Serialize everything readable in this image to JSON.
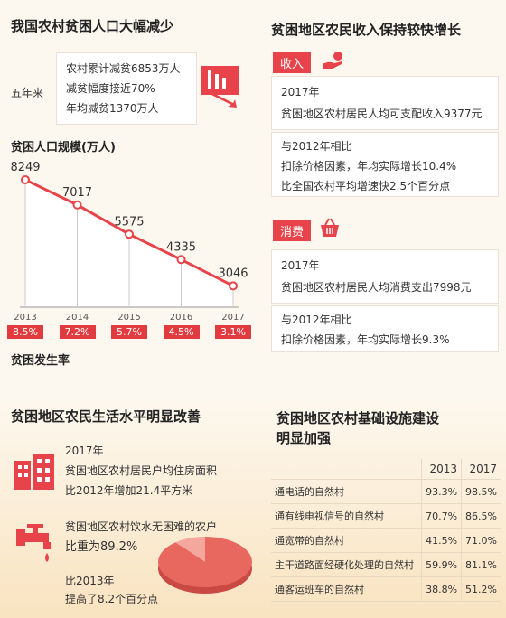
{
  "panel1": {
    "title": "我国农村贫困人口大幅减少",
    "five_years": "五年来",
    "stats": [
      "农村累计减贫6853万人",
      "减贫幅度接近70%",
      "年均减贫1370万人"
    ],
    "chart_title": "贫困人口规模(万人)",
    "rate_title": "贫困发生率"
  },
  "chart_data": {
    "type": "line",
    "title": "贫困人口规模(万人)",
    "categories": [
      "2013",
      "2014",
      "2015",
      "2016",
      "2017"
    ],
    "values": [
      8249,
      7017,
      5575,
      4335,
      3046
    ],
    "rates": [
      "8.5%",
      "7.2%",
      "5.7%",
      "4.5%",
      "3.1%"
    ],
    "ylim": [
      2000,
      9000
    ],
    "color": "#e8434a"
  },
  "panel2": {
    "title": "贫困地区农民收入保持较快增长",
    "income_tag": "收入",
    "income_year": "2017年",
    "income_text": "贫困地区农村居民人均可支配收入9377元",
    "income_cmp": [
      "与2012年相比",
      "扣除价格因素，年均实际增长10.4%",
      "比全国农村平均增速快2.5个百分点"
    ],
    "consume_tag": "消费",
    "consume_year": "2017年",
    "consume_text": "贫困地区农村居民人均消费支出7998元",
    "consume_cmp": [
      "与2012年相比",
      "扣除价格因素，年均实际增长9.3%"
    ]
  },
  "panel3": {
    "title": "贫困地区农民生活水平明显改善",
    "housing": [
      "2017年",
      "贫困地区农村居民户均住房面积",
      "比2012年增加21.4平方米"
    ],
    "water": [
      "贫困地区农村饮水无困难的农户",
      "比重为89.2%"
    ],
    "water_cmp": [
      "比2013年",
      "提高了8.2个百分点"
    ],
    "water_share": 0.892
  },
  "panel4": {
    "title_lines": [
      "贫困地区农村基础设施建设",
      "明显加强"
    ],
    "years": [
      "2013",
      "2017"
    ],
    "rows": [
      {
        "label": "通电话的自然村",
        "v2013": "93.3%",
        "v2017": "98.5%"
      },
      {
        "label": "通有线电视信号的自然村",
        "v2013": "70.7%",
        "v2017": "86.5%"
      },
      {
        "label": "通宽带的自然村",
        "v2013": "41.5%",
        "v2017": "71.0%"
      },
      {
        "label": "主干道路面经硬化处理的自然村",
        "v2013": "59.9%",
        "v2017": "81.1%"
      },
      {
        "label": "通客运班车的自然村",
        "v2013": "38.8%",
        "v2017": "51.2%"
      }
    ]
  },
  "colors": {
    "accent": "#e8434a",
    "bg": "#fdf8ef",
    "band": "#f9e6c7"
  }
}
